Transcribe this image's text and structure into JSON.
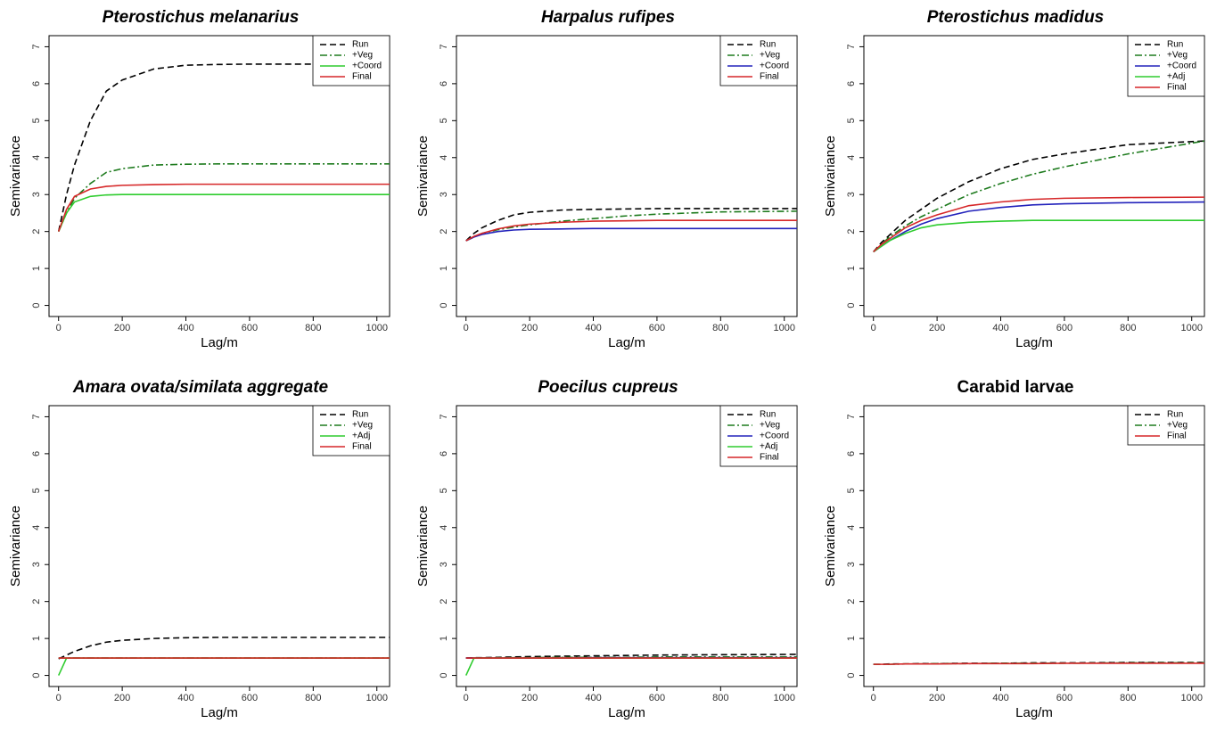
{
  "chart_data": [
    {
      "type": "line",
      "title": "Pterostichus melanarius",
      "title_style": "italic",
      "x_label": "Lag/m",
      "y_label": "Semivariance",
      "x": [
        0,
        25,
        50,
        100,
        150,
        200,
        300,
        400,
        500,
        600,
        800,
        1040
      ],
      "xlim": [
        -30,
        1040
      ],
      "ylim": [
        -0.3,
        7.3
      ],
      "xticks": [
        0,
        200,
        400,
        600,
        800,
        1000
      ],
      "yticks": [
        0,
        1,
        2,
        3,
        4,
        5,
        6,
        7
      ],
      "series": [
        {
          "name": "Run",
          "color": "#000000",
          "style": "dashed",
          "values": [
            2.0,
            3.0,
            3.8,
            5.0,
            5.8,
            6.1,
            6.4,
            6.5,
            6.52,
            6.53,
            6.53,
            6.53
          ]
        },
        {
          "name": "+Veg",
          "color": "#1e7b1e",
          "style": "dashdot",
          "values": [
            2.0,
            2.5,
            2.9,
            3.3,
            3.6,
            3.7,
            3.8,
            3.82,
            3.83,
            3.83,
            3.83,
            3.83
          ]
        },
        {
          "name": "+Coord",
          "color": "#2ecc2e",
          "style": "solid",
          "values": [
            2.0,
            2.5,
            2.8,
            2.95,
            2.99,
            3.0,
            3.0,
            3.0,
            3.0,
            3.0,
            3.0,
            3.0
          ]
        },
        {
          "name": "Final",
          "color": "#d62728",
          "style": "solid",
          "values": [
            2.0,
            2.6,
            2.95,
            3.15,
            3.22,
            3.25,
            3.27,
            3.28,
            3.28,
            3.28,
            3.28,
            3.28
          ]
        }
      ]
    },
    {
      "type": "line",
      "title": "Harpalus rufipes",
      "title_style": "italic",
      "x_label": "Lag/m",
      "y_label": "Semivariance",
      "x": [
        0,
        25,
        50,
        100,
        150,
        200,
        300,
        400,
        500,
        600,
        800,
        1040
      ],
      "xlim": [
        -30,
        1040
      ],
      "ylim": [
        -0.3,
        7.3
      ],
      "xticks": [
        0,
        200,
        400,
        600,
        800,
        1000
      ],
      "yticks": [
        0,
        1,
        2,
        3,
        4,
        5,
        6,
        7
      ],
      "series": [
        {
          "name": "Run",
          "color": "#000000",
          "style": "dashed",
          "values": [
            1.75,
            1.95,
            2.1,
            2.3,
            2.45,
            2.52,
            2.58,
            2.6,
            2.61,
            2.62,
            2.62,
            2.62
          ]
        },
        {
          "name": "+Veg",
          "color": "#1e7b1e",
          "style": "dashdot",
          "values": [
            1.75,
            1.85,
            1.95,
            2.05,
            2.12,
            2.18,
            2.28,
            2.35,
            2.42,
            2.47,
            2.53,
            2.55
          ]
        },
        {
          "name": "+Coord",
          "color": "#2222bb",
          "style": "solid",
          "values": [
            1.75,
            1.85,
            1.92,
            2.0,
            2.04,
            2.06,
            2.07,
            2.08,
            2.08,
            2.08,
            2.08,
            2.08
          ]
        },
        {
          "name": "Final",
          "color": "#d62728",
          "style": "solid",
          "values": [
            1.75,
            1.87,
            1.95,
            2.07,
            2.15,
            2.2,
            2.25,
            2.28,
            2.29,
            2.3,
            2.3,
            2.3
          ]
        }
      ]
    },
    {
      "type": "line",
      "title": "Pterostichus madidus",
      "title_style": "italic",
      "x_label": "Lag/m",
      "y_label": "Semivariance",
      "x": [
        0,
        25,
        50,
        100,
        150,
        200,
        300,
        400,
        500,
        600,
        800,
        1040
      ],
      "xlim": [
        -30,
        1040
      ],
      "ylim": [
        -0.3,
        7.3
      ],
      "xticks": [
        0,
        200,
        400,
        600,
        800,
        1000
      ],
      "yticks": [
        0,
        1,
        2,
        3,
        4,
        5,
        6,
        7
      ],
      "series": [
        {
          "name": "Run",
          "color": "#000000",
          "style": "dashed",
          "values": [
            1.45,
            1.7,
            1.9,
            2.3,
            2.6,
            2.9,
            3.35,
            3.7,
            3.95,
            4.1,
            4.35,
            4.45
          ]
        },
        {
          "name": "+Veg",
          "color": "#1e7b1e",
          "style": "dashdot",
          "values": [
            1.45,
            1.65,
            1.85,
            2.15,
            2.4,
            2.6,
            3.0,
            3.3,
            3.55,
            3.75,
            4.1,
            4.45
          ]
        },
        {
          "name": "+Coord",
          "color": "#2222bb",
          "style": "solid",
          "values": [
            1.45,
            1.6,
            1.75,
            2.0,
            2.2,
            2.35,
            2.55,
            2.65,
            2.72,
            2.75,
            2.78,
            2.8
          ]
        },
        {
          "name": "+Adj",
          "color": "#2ecc2e",
          "style": "solid",
          "values": [
            1.45,
            1.6,
            1.75,
            1.95,
            2.1,
            2.18,
            2.25,
            2.28,
            2.3,
            2.3,
            2.3,
            2.3
          ]
        },
        {
          "name": "Final",
          "color": "#d62728",
          "style": "solid",
          "values": [
            1.45,
            1.65,
            1.8,
            2.1,
            2.3,
            2.45,
            2.7,
            2.8,
            2.87,
            2.9,
            2.92,
            2.93
          ]
        }
      ]
    },
    {
      "type": "line",
      "title": "Amara ovata/similata aggregate",
      "title_style": "italic",
      "x_label": "Lag/m",
      "y_label": "Semivariance",
      "x": [
        0,
        25,
        50,
        100,
        150,
        200,
        300,
        400,
        500,
        600,
        800,
        1040
      ],
      "xlim": [
        -30,
        1040
      ],
      "ylim": [
        -0.3,
        7.3
      ],
      "xticks": [
        0,
        200,
        400,
        600,
        800,
        1000
      ],
      "yticks": [
        0,
        1,
        2,
        3,
        4,
        5,
        6,
        7
      ],
      "series": [
        {
          "name": "Run",
          "color": "#000000",
          "style": "dashed",
          "values": [
            0.45,
            0.55,
            0.65,
            0.8,
            0.9,
            0.95,
            1.0,
            1.02,
            1.03,
            1.03,
            1.03,
            1.03
          ]
        },
        {
          "name": "+Veg",
          "color": "#1e7b1e",
          "style": "dashdot",
          "values": [
            0.47,
            0.47,
            0.47,
            0.47,
            0.47,
            0.47,
            0.47,
            0.47,
            0.47,
            0.47,
            0.47,
            0.47
          ]
        },
        {
          "name": "+Adj",
          "color": "#2ecc2e",
          "style": "solid",
          "values": [
            0,
            0.47,
            0.47,
            0.47,
            0.47,
            0.47,
            0.47,
            0.47,
            0.47,
            0.47,
            0.47,
            0.47
          ]
        },
        {
          "name": "Final",
          "color": "#d62728",
          "style": "solid",
          "values": [
            0.47,
            0.47,
            0.47,
            0.47,
            0.47,
            0.47,
            0.47,
            0.47,
            0.47,
            0.47,
            0.47,
            0.47
          ]
        }
      ]
    },
    {
      "type": "line",
      "title": "Poecilus cupreus",
      "title_style": "italic",
      "x_label": "Lag/m",
      "y_label": "Semivariance",
      "x": [
        0,
        25,
        50,
        100,
        150,
        200,
        300,
        400,
        500,
        600,
        800,
        1040
      ],
      "xlim": [
        -30,
        1040
      ],
      "ylim": [
        -0.3,
        7.3
      ],
      "xticks": [
        0,
        200,
        400,
        600,
        800,
        1000
      ],
      "yticks": [
        0,
        1,
        2,
        3,
        4,
        5,
        6,
        7
      ],
      "series": [
        {
          "name": "Run",
          "color": "#000000",
          "style": "dashed",
          "values": [
            0.47,
            0.48,
            0.48,
            0.49,
            0.5,
            0.51,
            0.52,
            0.53,
            0.54,
            0.55,
            0.56,
            0.57
          ]
        },
        {
          "name": "+Veg",
          "color": "#1e7b1e",
          "style": "dashdot",
          "values": [
            0.47,
            0.47,
            0.47,
            0.48,
            0.48,
            0.48,
            0.49,
            0.49,
            0.49,
            0.5,
            0.5,
            0.5
          ]
        },
        {
          "name": "+Coord",
          "color": "#2222bb",
          "style": "solid",
          "values": [
            0.47,
            0.47,
            0.47,
            0.47,
            0.47,
            0.47,
            0.47,
            0.48,
            0.48,
            0.48,
            0.48,
            0.48
          ]
        },
        {
          "name": "+Adj",
          "color": "#2ecc2e",
          "style": "solid",
          "values": [
            0,
            0.47,
            0.47,
            0.47,
            0.47,
            0.47,
            0.47,
            0.47,
            0.47,
            0.47,
            0.47,
            0.47
          ]
        },
        {
          "name": "Final",
          "color": "#d62728",
          "style": "solid",
          "values": [
            0.47,
            0.47,
            0.47,
            0.47,
            0.47,
            0.47,
            0.47,
            0.47,
            0.47,
            0.47,
            0.47,
            0.47
          ]
        }
      ]
    },
    {
      "type": "line",
      "title": "Carabid larvae",
      "title_style": "normal",
      "x_label": "Lag/m",
      "y_label": "Semivariance",
      "x": [
        0,
        25,
        50,
        100,
        150,
        200,
        300,
        400,
        500,
        600,
        800,
        1040
      ],
      "xlim": [
        -30,
        1040
      ],
      "ylim": [
        -0.3,
        7.3
      ],
      "xticks": [
        0,
        200,
        400,
        600,
        800,
        1000
      ],
      "yticks": [
        0,
        1,
        2,
        3,
        4,
        5,
        6,
        7
      ],
      "series": [
        {
          "name": "Run",
          "color": "#000000",
          "style": "dashed",
          "values": [
            0.3,
            0.3,
            0.31,
            0.31,
            0.32,
            0.32,
            0.33,
            0.33,
            0.34,
            0.34,
            0.35,
            0.35
          ]
        },
        {
          "name": "+Veg",
          "color": "#1e7b1e",
          "style": "dashdot",
          "values": [
            0.3,
            0.3,
            0.3,
            0.31,
            0.31,
            0.32,
            0.32,
            0.33,
            0.33,
            0.33,
            0.34,
            0.34
          ]
        },
        {
          "name": "Final",
          "color": "#d62728",
          "style": "solid",
          "values": [
            0.3,
            0.3,
            0.3,
            0.31,
            0.31,
            0.31,
            0.32,
            0.32,
            0.32,
            0.33,
            0.33,
            0.33
          ]
        }
      ]
    }
  ]
}
